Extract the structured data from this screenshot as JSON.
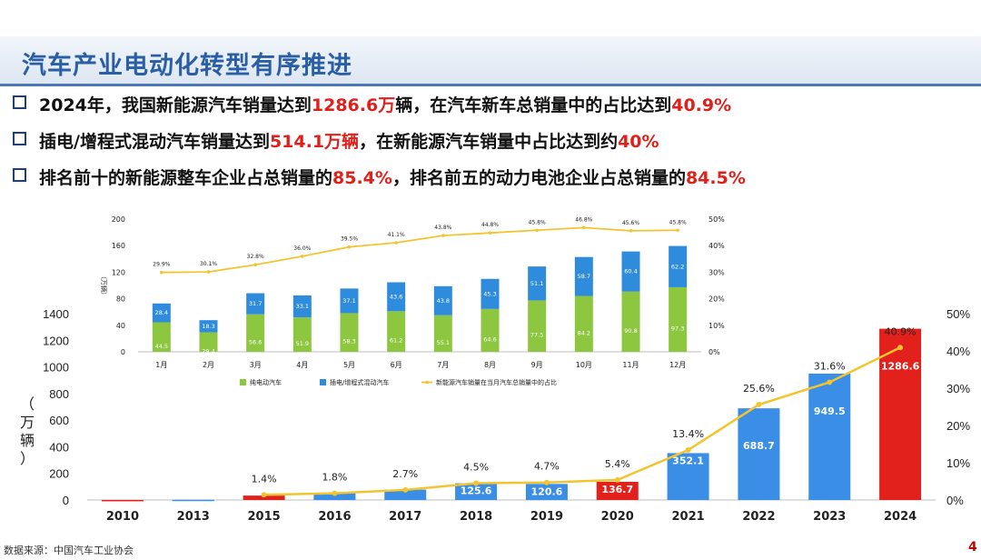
{
  "title": "汽车产业电动化转型有序推进",
  "bullets": [
    {
      "pre": "2024年，我国新能源汽车销量达到",
      "hl1": "1286.6万",
      "mid": "辆，在汽车新车总销量中的占比达到",
      "hl2": "40.9%",
      "post": ""
    },
    {
      "pre": "插电/增程式混动汽车销量达到",
      "hl1": "514.1万辆",
      "mid": "，在新能源汽车销量中占比达到约",
      "hl2": "40%",
      "post": ""
    },
    {
      "pre": "排名前十的新能源整车企业占总销量的",
      "hl1": "85.4%",
      "mid": "，排名前五的动力电池企业占总销量的",
      "hl2": "84.5%",
      "post": ""
    }
  ],
  "footer": {
    "source": "数据来源：中国汽车工业协会",
    "page": "4"
  },
  "colors": {
    "title": "#2b5fa5",
    "highlight": "#e0201b",
    "red_bar": "#e3211c",
    "blue_bar": "#3a8ee6",
    "line": "#f2c530",
    "green_bar": "#8dc63f",
    "inner_blue": "#2f8cdc"
  },
  "chart_data": [
    {
      "type": "bar",
      "categories": [
        "2010",
        "2013",
        "2015",
        "2016",
        "2017",
        "2018",
        "2019",
        "2020",
        "2021",
        "2022",
        "2023",
        "2024"
      ],
      "series": [
        {
          "values": [
            0.5,
            1.8,
            33.1,
            50.7,
            77.7,
            125.6,
            120.6,
            136.7,
            352.1,
            688.7,
            949.5,
            1286.6
          ],
          "value_labels": [
            "",
            "",
            "",
            "",
            "",
            "125.6",
            "120.6",
            "136.7",
            "352.1",
            "688.7",
            "949.5",
            "1286.6"
          ],
          "highlight_years": [
            "2010",
            "2015",
            "2020",
            "2024"
          ]
        },
        {
          "type": "line",
          "axis": "right",
          "values": [
            null,
            null,
            1.4,
            1.8,
            2.7,
            4.5,
            4.7,
            5.4,
            13.4,
            25.6,
            31.6,
            40.9
          ],
          "labels": [
            "",
            "",
            "1.4%",
            "1.8%",
            "2.7%",
            "4.5%",
            "4.7%",
            "5.4%",
            "13.4%",
            "25.6%",
            "31.6%",
            "40.9%"
          ]
        }
      ],
      "ylabel": "（万辆）",
      "ylim": [
        0,
        1400
      ],
      "y_ticks": [
        "0",
        "200",
        "400",
        "600",
        "800",
        "1000",
        "1200",
        "1400"
      ],
      "y2lim": [
        0,
        50
      ],
      "y2_ticks": [
        "0%",
        "10%",
        "20%",
        "30%",
        "40%",
        "50%"
      ],
      "grid": false
    },
    {
      "type": "bar",
      "stacked": true,
      "categories": [
        "1月",
        "2月",
        "3月",
        "4月",
        "5月",
        "6月",
        "7月",
        "8月",
        "9月",
        "10月",
        "11月",
        "12月"
      ],
      "series": [
        {
          "name": "纯电动汽车",
          "values": [
            44.5,
            29.4,
            56.6,
            51.9,
            58.3,
            61.2,
            55.1,
            64.6,
            77.5,
            84.2,
            90.8,
            97.3
          ],
          "labels": [
            "44.5",
            "29.4",
            "56.6",
            "51.9",
            "58.3",
            "61.2",
            "55.1",
            "64.6",
            "77.5",
            "84.2",
            "90.8",
            "97.3"
          ]
        },
        {
          "name": "插电/增程式混动汽车",
          "values": [
            28.4,
            18.3,
            31.7,
            33.1,
            37.1,
            43.6,
            43.8,
            45.3,
            51.1,
            58.7,
            60.4,
            62.2
          ],
          "labels": [
            "28.4",
            "18.3",
            "31.7",
            "33.1",
            "37.1",
            "43.6",
            "43.8",
            "45.3",
            "51.1",
            "58.7",
            "60.4",
            "62.2"
          ]
        },
        {
          "name": "新能源汽车销量在当月汽车总销量中的占比",
          "type": "line",
          "axis": "right",
          "values": [
            29.9,
            30.1,
            32.8,
            36.0,
            39.5,
            41.1,
            43.8,
            44.8,
            45.8,
            46.8,
            45.6,
            45.8
          ],
          "labels": [
            "29.9%",
            "30.1%",
            "32.8%",
            "36.0%",
            "39.5%",
            "41.1%",
            "43.8%",
            "44.8%",
            "45.8%",
            "46.8%",
            "45.6%",
            "45.8%"
          ]
        }
      ],
      "ylabel": "（万辆）",
      "ylim": [
        0,
        200
      ],
      "y_ticks": [
        "0",
        "40",
        "80",
        "120",
        "160",
        "200"
      ],
      "y2lim": [
        0,
        50
      ],
      "y2_ticks": [
        "0%",
        "10%",
        "20%",
        "30%",
        "40%",
        "50%"
      ],
      "legend": "bottom",
      "grid": false
    }
  ]
}
